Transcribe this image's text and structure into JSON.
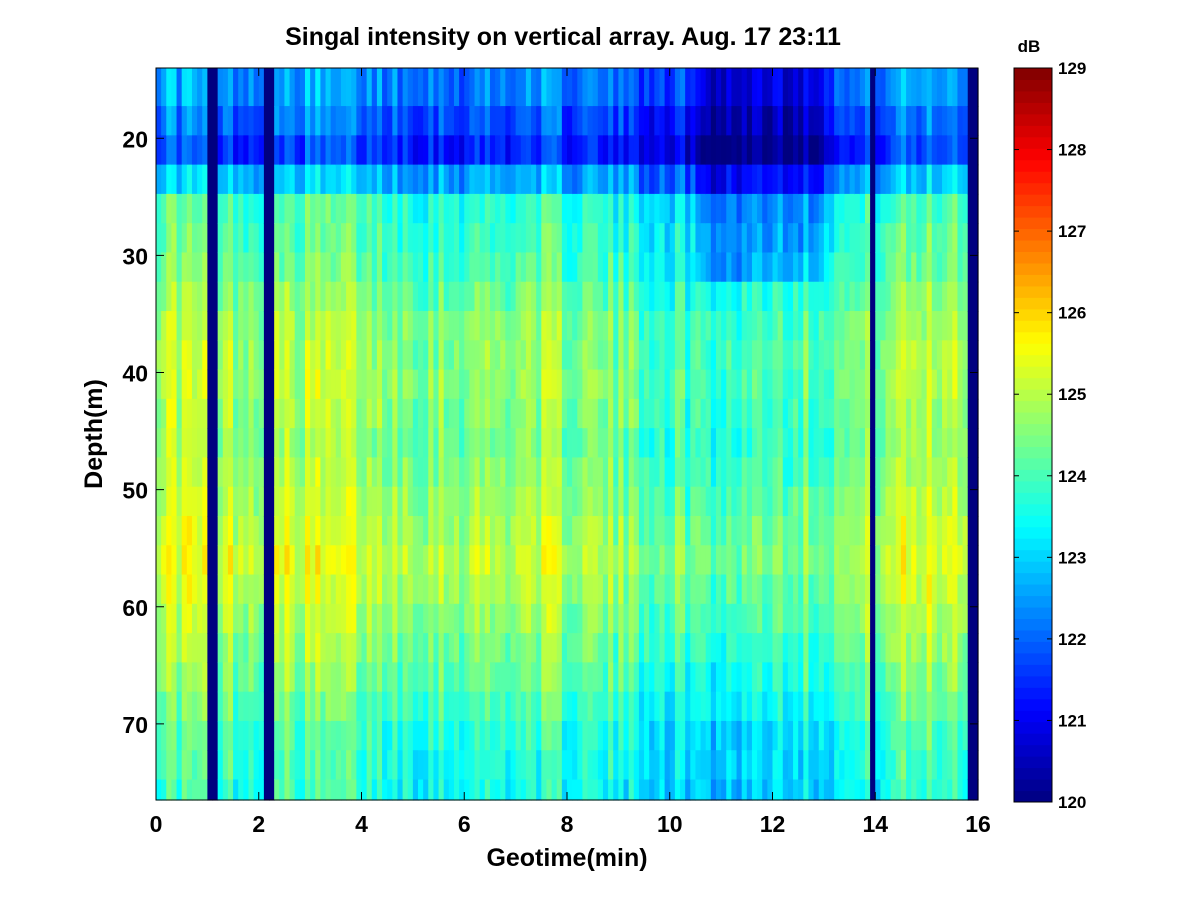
{
  "chart_data": {
    "type": "heatmap",
    "title": "Singal intensity on vertical array. Aug. 17 23:11",
    "xlabel": "Geotime(min)",
    "ylabel": "Depth(m)",
    "x_ticks": [
      "0",
      "2",
      "4",
      "6",
      "8",
      "10",
      "12",
      "14",
      "16"
    ],
    "y_ticks": [
      "20",
      "30",
      "40",
      "50",
      "60",
      "70"
    ],
    "xlim": [
      0,
      16
    ],
    "ylim": [
      76.5,
      14
    ],
    "colorbar": {
      "unit": "dB",
      "ticks": [
        "120",
        "121",
        "122",
        "123",
        "124",
        "125",
        "126",
        "127",
        "128",
        "129"
      ],
      "range": [
        120,
        129
      ],
      "colormap": "jet"
    },
    "depth_rows": [
      16,
      18.5,
      21,
      23.5,
      26,
      28.5,
      31,
      33.5,
      36,
      38.5,
      41,
      43.5,
      46,
      48.5,
      51,
      53.5,
      56,
      58.5,
      61,
      63.5,
      66,
      68.5,
      71,
      73.5,
      76
    ],
    "x_samples": 160,
    "depth_profile_db": [
      {
        "depth": 16,
        "db": 122.2
      },
      {
        "depth": 21,
        "db": 121.4
      },
      {
        "depth": 26,
        "db": 123.7
      },
      {
        "depth": 31,
        "db": 124.0
      },
      {
        "depth": 36,
        "db": 124.5
      },
      {
        "depth": 41,
        "db": 124.6
      },
      {
        "depth": 46,
        "db": 124.4
      },
      {
        "depth": 51,
        "db": 124.7
      },
      {
        "depth": 56,
        "db": 125.0
      },
      {
        "depth": 61,
        "db": 124.6
      },
      {
        "depth": 66,
        "db": 124.2
      },
      {
        "depth": 71,
        "db": 123.7
      },
      {
        "depth": 76,
        "db": 123.5
      }
    ],
    "time_segment_offsets_db": [
      {
        "t": 0.0,
        "offset": 0.6
      },
      {
        "t": 1.0,
        "offset": 0.4
      },
      {
        "t": 2.0,
        "offset": 0.2
      },
      {
        "t": 2.8,
        "offset": 0.4
      },
      {
        "t": 3.7,
        "offset": 0.4
      },
      {
        "t": 4.5,
        "offset": 0.1
      },
      {
        "t": 6.0,
        "offset": 0.0
      },
      {
        "t": 7.5,
        "offset": 0.2
      },
      {
        "t": 9.0,
        "offset": -0.2
      },
      {
        "t": 10.0,
        "offset": -0.5
      },
      {
        "t": 11.0,
        "offset": -0.7
      },
      {
        "t": 12.0,
        "offset": -0.4
      },
      {
        "t": 13.5,
        "offset": -0.2
      },
      {
        "t": 14.5,
        "offset": 0.3
      },
      {
        "t": 15.5,
        "offset": 0.5
      }
    ],
    "dropout_columns_min": [
      1.1,
      2.2,
      13.95,
      15.85
    ],
    "dropout_db": 120.0
  }
}
